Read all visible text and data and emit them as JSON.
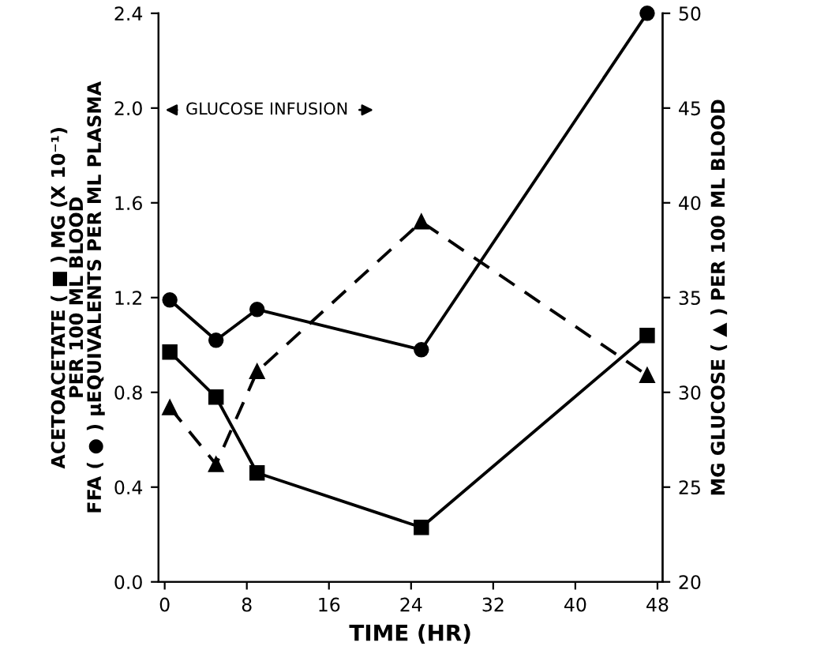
{
  "chart_data": {
    "type": "line",
    "xlabel": "TIME (HR)",
    "ylabel": "ACETOACETATE ( ■ ) MG (X 10⁻¹)\nPER 100 ML BLOOD\nFFA ( ● ) μEQUIVALENTS PER ML PLASMA",
    "y2label": "MG GLUCOSE ( ▲ ) PER 100 ML BLOOD",
    "annotations": [
      "GLUCOSE INFUSION"
    ],
    "series": [
      {
        "color": "#000000",
        "marker": "circle",
        "line_style": "solid",
        "x": [
          0.5,
          5,
          9,
          25,
          47
        ],
        "values": [
          1.19,
          1.02,
          1.15,
          0.98,
          2.4
        ]
      },
      {
        "color": "#000000",
        "marker": "square",
        "line_style": "solid",
        "x": [
          0.5,
          5,
          9,
          25,
          47
        ],
        "values": [
          0.97,
          0.78,
          0.46,
          0.23,
          1.04
        ]
      },
      {
        "color": "#000000",
        "marker": "triangle",
        "line_style": "dashed",
        "axis": "y2",
        "x": [
          0.5,
          5,
          9,
          25,
          47
        ],
        "values": [
          29.2,
          26.2,
          31.1,
          39.0,
          30.9
        ]
      }
    ],
    "xlim": [
      -0.6,
      48.5
    ],
    "xticks": [
      0,
      8,
      16,
      24,
      32,
      40,
      48
    ],
    "ylim": [
      0,
      2.4
    ],
    "yticks": [
      {
        "value": 0,
        "label": "0.0"
      },
      {
        "value": 0.4,
        "label": "0.4"
      },
      {
        "value": 0.8,
        "label": "0.8"
      },
      {
        "value": 1.2,
        "label": "1.2"
      },
      {
        "value": 1.6,
        "label": "1.6"
      },
      {
        "value": 2.0,
        "label": "2.0"
      },
      {
        "value": 2.4,
        "label": "2.4"
      }
    ],
    "y2lim": [
      20,
      50
    ],
    "y2ticks": [
      20,
      25,
      30,
      35,
      40,
      45,
      50
    ],
    "grid": false,
    "legend": false
  }
}
